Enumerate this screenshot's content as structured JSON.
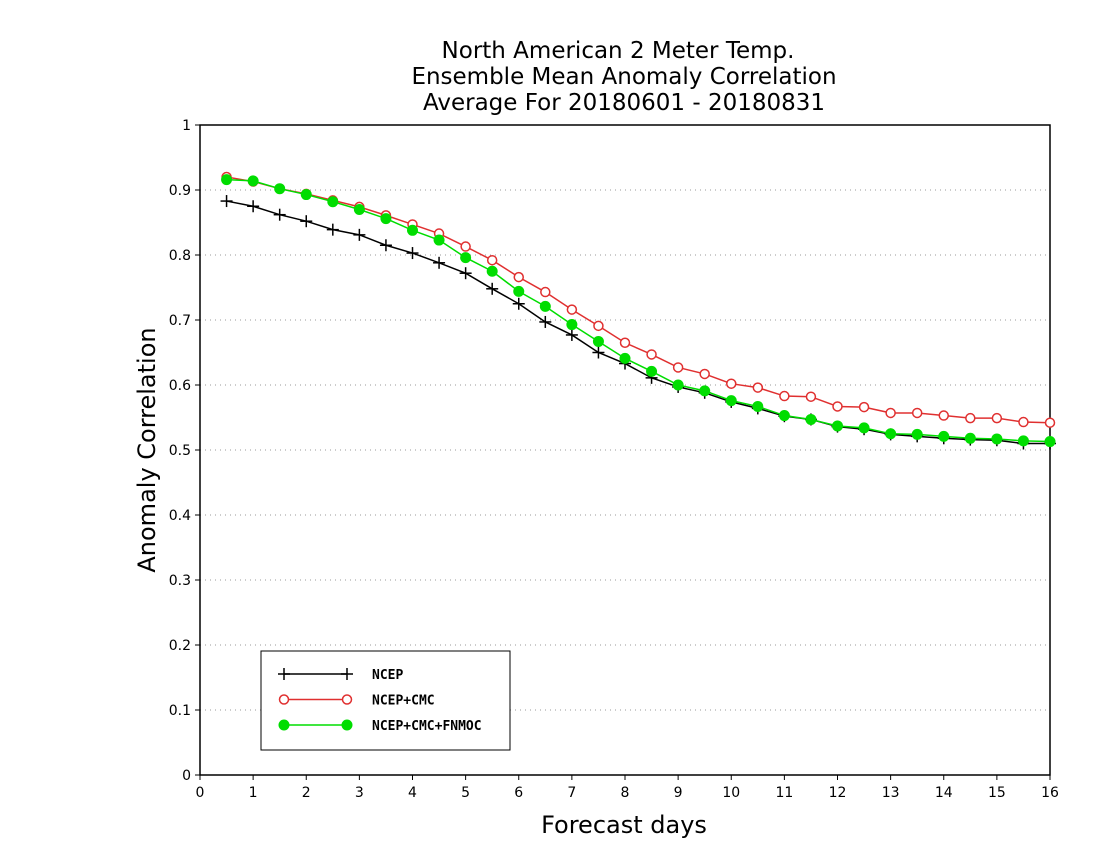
{
  "chart_data": {
    "type": "line",
    "title_lines": [
      "North American 2 Meter Temp.",
      "Ensemble Mean Anomaly Correlation",
      "Average For 20180601 - 20180831"
    ],
    "xlabel": "Forecast days",
    "ylabel": "Anomaly Correlation",
    "xlim": [
      0,
      16
    ],
    "ylim": [
      0,
      1
    ],
    "x_ticks": [
      "0",
      "1",
      "2",
      "3",
      "4",
      "5",
      "6",
      "7",
      "8",
      "9",
      "10",
      "11",
      "12",
      "13",
      "14",
      "15",
      "16"
    ],
    "y_ticks": [
      "0",
      "0.1",
      "0.2",
      "0.3",
      "0.4",
      "0.5",
      "0.6",
      "0.7",
      "0.8",
      "0.9",
      "1"
    ],
    "grid": "horizontal dotted",
    "legend_position": "bottom-left",
    "x": [
      0.5,
      1,
      1.5,
      2,
      2.5,
      3,
      3.5,
      4,
      4.5,
      5,
      5.5,
      6,
      6.5,
      7,
      7.5,
      8,
      8.5,
      9,
      9.5,
      10,
      10.5,
      11,
      11.5,
      12,
      12.5,
      13,
      13.5,
      14,
      14.5,
      15,
      15.5,
      16
    ],
    "series": [
      {
        "name": "NCEP",
        "color": "#000000",
        "marker": "plus",
        "values": [
          0.883,
          0.875,
          0.862,
          0.852,
          0.839,
          0.831,
          0.815,
          0.803,
          0.788,
          0.772,
          0.748,
          0.725,
          0.697,
          0.677,
          0.65,
          0.633,
          0.611,
          0.597,
          0.588,
          0.574,
          0.564,
          0.552,
          0.547,
          0.536,
          0.532,
          0.524,
          0.521,
          0.518,
          0.516,
          0.515,
          0.51,
          0.51
        ]
      },
      {
        "name": "NCEP+CMC",
        "color": "#e03030",
        "marker": "open-circle",
        "values": [
          0.92,
          0.913,
          0.902,
          0.894,
          0.884,
          0.874,
          0.861,
          0.847,
          0.833,
          0.813,
          0.792,
          0.766,
          0.743,
          0.716,
          0.691,
          0.665,
          0.647,
          0.627,
          0.617,
          0.602,
          0.596,
          0.583,
          0.582,
          0.567,
          0.566,
          0.557,
          0.557,
          0.553,
          0.549,
          0.549,
          0.543,
          0.542
        ]
      },
      {
        "name": "NCEP+CMC+FNMOC",
        "color": "#00dd00",
        "marker": "filled-circle",
        "values": [
          0.916,
          0.914,
          0.902,
          0.893,
          0.882,
          0.87,
          0.856,
          0.838,
          0.823,
          0.796,
          0.775,
          0.744,
          0.721,
          0.693,
          0.667,
          0.641,
          0.621,
          0.6,
          0.591,
          0.576,
          0.567,
          0.553,
          0.547,
          0.537,
          0.534,
          0.525,
          0.524,
          0.521,
          0.518,
          0.517,
          0.514,
          0.513
        ]
      }
    ]
  }
}
